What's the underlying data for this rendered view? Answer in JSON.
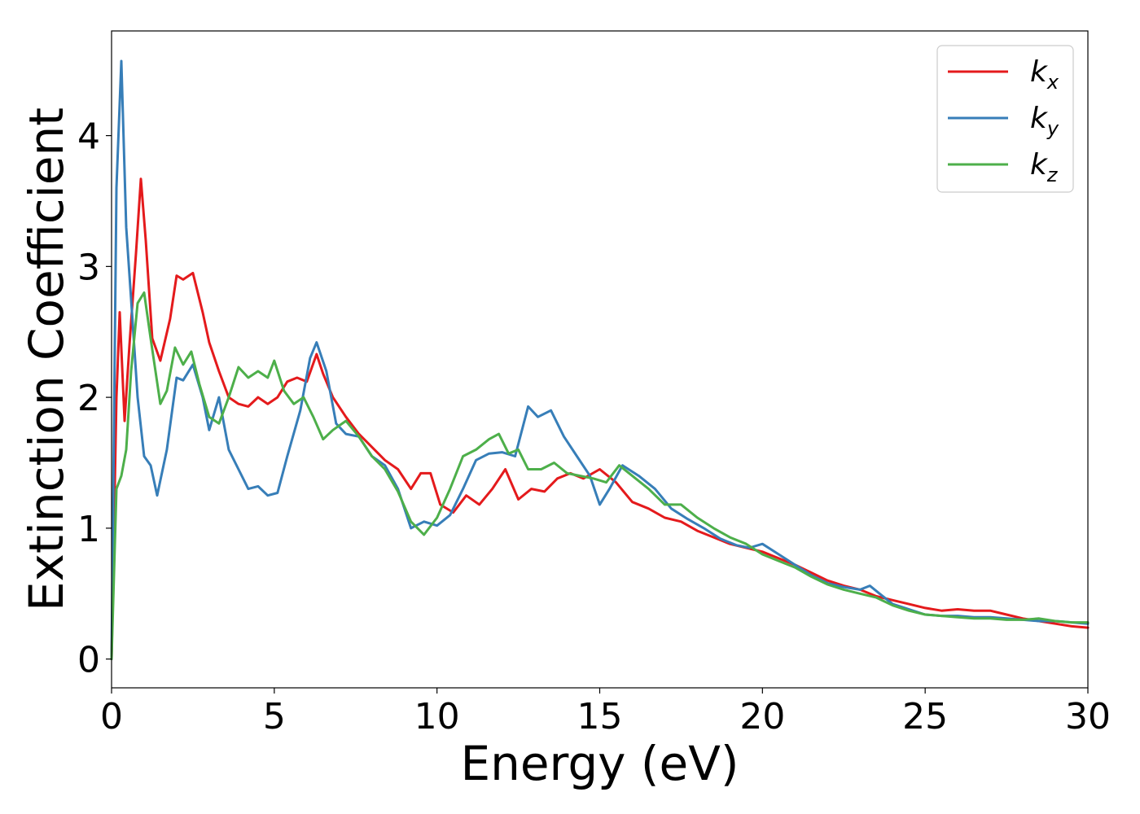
{
  "chart_data": {
    "type": "line",
    "xlabel": "Energy (eV)",
    "ylabel": "Extinction Coefficient",
    "xlim": [
      0,
      30
    ],
    "ylim": [
      -0.22,
      4.8
    ],
    "xticks": [
      0,
      5,
      10,
      15,
      20,
      25,
      30
    ],
    "xtick_labels": [
      "0",
      "5",
      "10",
      "15",
      "20",
      "25",
      "30"
    ],
    "yticks": [
      0,
      1,
      2,
      3,
      4
    ],
    "ytick_labels": [
      "0",
      "1",
      "2",
      "3",
      "4"
    ],
    "grid": false,
    "legend_position": "top-right",
    "series": [
      {
        "name": "k_x",
        "legend_base": "k",
        "legend_sub": "x",
        "color": "#e41a1c",
        "x": [
          0,
          0.15,
          0.25,
          0.4,
          0.55,
          0.75,
          0.9,
          1.05,
          1.25,
          1.5,
          1.8,
          2.0,
          2.2,
          2.5,
          2.8,
          3.0,
          3.3,
          3.6,
          3.9,
          4.2,
          4.5,
          4.8,
          5.1,
          5.4,
          5.7,
          6.0,
          6.3,
          6.5,
          6.8,
          7.2,
          7.6,
          8.0,
          8.4,
          8.8,
          9.2,
          9.5,
          9.8,
          10.1,
          10.5,
          10.9,
          11.3,
          11.7,
          12.1,
          12.5,
          12.9,
          13.3,
          13.7,
          14.1,
          14.5,
          15.0,
          15.5,
          16.0,
          16.5,
          17.0,
          17.5,
          18.0,
          18.5,
          19.0,
          19.5,
          20.0,
          20.5,
          21.0,
          21.5,
          22.0,
          22.5,
          23.0,
          23.5,
          24.0,
          24.5,
          25.0,
          25.5,
          26.0,
          26.5,
          27.0,
          27.5,
          28.0,
          28.5,
          29.0,
          29.5,
          30.0
        ],
        "y": [
          0,
          2.0,
          2.65,
          1.82,
          2.4,
          3.1,
          3.67,
          3.2,
          2.45,
          2.28,
          2.6,
          2.93,
          2.9,
          2.95,
          2.65,
          2.42,
          2.2,
          2.0,
          1.95,
          1.93,
          2.0,
          1.95,
          2.0,
          2.12,
          2.15,
          2.12,
          2.33,
          2.18,
          2.0,
          1.85,
          1.72,
          1.62,
          1.52,
          1.45,
          1.3,
          1.42,
          1.42,
          1.18,
          1.12,
          1.25,
          1.18,
          1.3,
          1.45,
          1.22,
          1.3,
          1.28,
          1.38,
          1.42,
          1.38,
          1.45,
          1.35,
          1.2,
          1.15,
          1.08,
          1.05,
          0.98,
          0.93,
          0.88,
          0.85,
          0.82,
          0.77,
          0.72,
          0.66,
          0.6,
          0.56,
          0.53,
          0.48,
          0.45,
          0.42,
          0.39,
          0.37,
          0.38,
          0.37,
          0.37,
          0.34,
          0.31,
          0.29,
          0.27,
          0.25,
          0.24
        ]
      },
      {
        "name": "k_y",
        "legend_base": "k",
        "legend_sub": "y",
        "color": "#377eb8",
        "x": [
          0,
          0.15,
          0.3,
          0.45,
          0.6,
          0.8,
          1.0,
          1.2,
          1.4,
          1.7,
          2.0,
          2.2,
          2.5,
          2.8,
          3.0,
          3.3,
          3.6,
          3.9,
          4.2,
          4.5,
          4.8,
          5.1,
          5.4,
          5.8,
          6.1,
          6.3,
          6.6,
          6.9,
          7.2,
          7.6,
          8.0,
          8.4,
          8.8,
          9.2,
          9.6,
          10.0,
          10.4,
          10.8,
          11.2,
          11.6,
          12.0,
          12.4,
          12.8,
          13.1,
          13.5,
          13.9,
          14.3,
          14.7,
          15.0,
          15.3,
          15.7,
          16.2,
          16.7,
          17.2,
          17.7,
          18.2,
          18.7,
          19.2,
          19.6,
          20.0,
          20.5,
          21.0,
          21.5,
          22.0,
          22.5,
          23.0,
          23.3,
          23.6,
          24.0,
          24.5,
          25.0,
          25.5,
          26.0,
          26.5,
          27.0,
          27.5,
          28.0,
          28.5,
          29.0,
          29.5,
          30.0
        ],
        "y": [
          0,
          3.6,
          4.57,
          3.3,
          2.75,
          2.0,
          1.55,
          1.48,
          1.25,
          1.6,
          2.15,
          2.13,
          2.25,
          2.0,
          1.75,
          2.0,
          1.6,
          1.45,
          1.3,
          1.32,
          1.25,
          1.27,
          1.55,
          1.9,
          2.3,
          2.42,
          2.2,
          1.8,
          1.72,
          1.7,
          1.55,
          1.48,
          1.3,
          1.0,
          1.05,
          1.02,
          1.1,
          1.3,
          1.52,
          1.57,
          1.58,
          1.55,
          1.93,
          1.85,
          1.9,
          1.7,
          1.55,
          1.4,
          1.18,
          1.3,
          1.48,
          1.4,
          1.3,
          1.15,
          1.07,
          1.0,
          0.92,
          0.87,
          0.85,
          0.88,
          0.8,
          0.72,
          0.64,
          0.58,
          0.55,
          0.53,
          0.56,
          0.5,
          0.42,
          0.38,
          0.34,
          0.33,
          0.33,
          0.32,
          0.32,
          0.31,
          0.3,
          0.29,
          0.29,
          0.28,
          0.27
        ]
      },
      {
        "name": "k_z",
        "legend_base": "k",
        "legend_sub": "z",
        "color": "#4daf4a",
        "x": [
          0,
          0.15,
          0.3,
          0.45,
          0.6,
          0.8,
          1.0,
          1.2,
          1.5,
          1.7,
          1.95,
          2.2,
          2.45,
          2.7,
          3.0,
          3.3,
          3.6,
          3.9,
          4.2,
          4.5,
          4.8,
          5.0,
          5.3,
          5.6,
          5.9,
          6.2,
          6.5,
          6.8,
          7.2,
          7.6,
          8.0,
          8.4,
          8.8,
          9.2,
          9.6,
          10.0,
          10.4,
          10.8,
          11.2,
          11.6,
          11.9,
          12.2,
          12.5,
          12.8,
          13.2,
          13.6,
          14.0,
          14.4,
          14.8,
          15.2,
          15.6,
          16.0,
          16.5,
          17.0,
          17.5,
          18.0,
          18.5,
          19.0,
          19.5,
          20.0,
          20.5,
          21.0,
          21.5,
          22.0,
          22.5,
          23.0,
          23.5,
          24.0,
          24.5,
          25.0,
          25.5,
          26.0,
          26.5,
          27.0,
          27.5,
          28.0,
          28.5,
          29.0,
          29.5,
          30.0
        ],
        "y": [
          0,
          1.3,
          1.4,
          1.6,
          2.2,
          2.72,
          2.8,
          2.45,
          1.95,
          2.05,
          2.38,
          2.25,
          2.35,
          2.1,
          1.85,
          1.8,
          2.0,
          2.23,
          2.15,
          2.2,
          2.15,
          2.28,
          2.05,
          1.95,
          2.0,
          1.85,
          1.68,
          1.75,
          1.82,
          1.7,
          1.55,
          1.45,
          1.28,
          1.05,
          0.95,
          1.08,
          1.3,
          1.55,
          1.6,
          1.68,
          1.72,
          1.57,
          1.6,
          1.45,
          1.45,
          1.5,
          1.42,
          1.4,
          1.38,
          1.35,
          1.48,
          1.4,
          1.3,
          1.18,
          1.18,
          1.08,
          1.0,
          0.93,
          0.88,
          0.8,
          0.75,
          0.7,
          0.63,
          0.57,
          0.53,
          0.5,
          0.47,
          0.41,
          0.37,
          0.34,
          0.33,
          0.32,
          0.31,
          0.31,
          0.3,
          0.3,
          0.31,
          0.29,
          0.28,
          0.28
        ]
      }
    ]
  }
}
